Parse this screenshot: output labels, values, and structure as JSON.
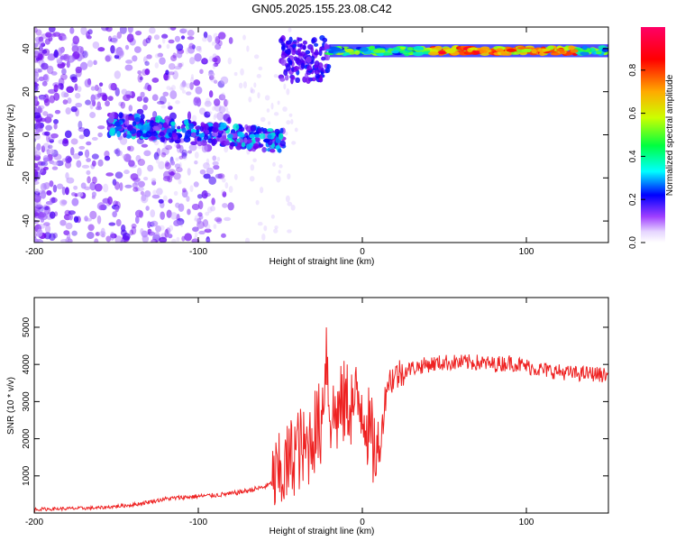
{
  "title": "GN05.2025.155.23.08.C42",
  "chart_data": [
    {
      "type": "heatmap",
      "title": "GN05.2025.155.23.08.C42",
      "xlabel": "Height of straight line (km)",
      "ylabel": "Frequency (Hz)",
      "xlim": [
        -200,
        150
      ],
      "ylim": [
        -50,
        50
      ],
      "x_ticks": [
        -200,
        -100,
        0,
        100
      ],
      "y_ticks": [
        -40,
        -20,
        0,
        20,
        40
      ],
      "colorbar": {
        "label": "Normalized spectral amplitude",
        "range": [
          0,
          1
        ],
        "ticks": [
          "0.0",
          "0.2",
          "0.4",
          "0.6",
          "0.8"
        ],
        "colormap": [
          "#ffffff",
          "#c9a8ff",
          "#8a00ff",
          "#0000ff",
          "#00ffff",
          "#00ff00",
          "#ffff00",
          "#ff8000",
          "#ff0000",
          "#ff0080"
        ]
      },
      "features": [
        {
          "x_range": [
            -200,
            -130
          ],
          "frequency_range": [
            -50,
            50
          ],
          "amplitude": 0.15
        },
        {
          "x_range": [
            -155,
            -48
          ],
          "frequency_center": [
            5,
            -3
          ],
          "amplitude": 0.35
        },
        {
          "x_range": [
            -50,
            -20
          ],
          "frequency_range": [
            20,
            45
          ],
          "amplitude": 0.25
        },
        {
          "x_range": [
            -20,
            150
          ],
          "frequency_center": 39,
          "amplitude": 0.85
        }
      ]
    },
    {
      "type": "line",
      "xlabel": "Height of straight line (km)",
      "ylabel": "SNR (10 * v/v)",
      "xlim": [
        -200,
        150
      ],
      "ylim": [
        0,
        5800
      ],
      "x_ticks": [
        -200,
        -100,
        0,
        100
      ],
      "y_ticks": [
        1000,
        2000,
        3000,
        4000,
        5000
      ],
      "series": [
        {
          "color": "#ee2222",
          "x": [
            -200,
            -180,
            -160,
            -140,
            -130,
            -120,
            -110,
            -100,
            -90,
            -80,
            -70,
            -60,
            -55,
            -50,
            -45,
            -40,
            -35,
            -30,
            -25,
            -22,
            -20,
            -18,
            -15,
            -10,
            -5,
            0,
            5,
            10,
            15,
            20,
            25,
            30,
            40,
            50,
            60,
            70,
            80,
            90,
            100,
            110,
            120,
            130,
            140,
            150
          ],
          "y": [
            100,
            120,
            140,
            220,
            300,
            380,
            420,
            450,
            480,
            520,
            600,
            700,
            800,
            1000,
            1300,
            1800,
            1600,
            2200,
            2400,
            4500,
            2800,
            2600,
            2700,
            3000,
            2900,
            3000,
            2000,
            1500,
            3500,
            3700,
            3800,
            3900,
            4000,
            4050,
            4050,
            4050,
            4000,
            4050,
            3950,
            3850,
            3800,
            3750,
            3750,
            3700
          ]
        }
      ]
    }
  ]
}
